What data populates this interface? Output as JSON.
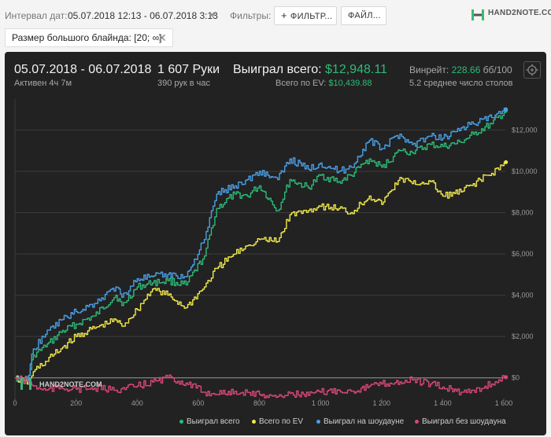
{
  "toolbar": {
    "date_label": "Интервал дат:",
    "date_value": "05.07.2018 12:13 - 06.07.2018 3:13",
    "filters_label": "Фильтры:",
    "filter_button": "ФИЛЬТР...",
    "file_button": "ФАЙЛ...",
    "logo": "HAND2NOTE.COM"
  },
  "active_filter": {
    "label": "Размер большого блайнда: [20; ∞]",
    "close": "✕"
  },
  "stats": {
    "date_range": "05.07.2018 - 06.07.2018",
    "active": "Активен 4ч 7м",
    "hands": "1 607 Руки",
    "hands_per_hour": "390 рук в час",
    "won_label": "Выиграл всего:",
    "won_value": "$12,948.11",
    "ev_label": "Всего по EV:",
    "ev_value": "$10,439.88",
    "winrate_label": "Винрейт:",
    "winrate_value": "228.66",
    "winrate_unit": "бб/100",
    "tables": "5.2 среднее число столов"
  },
  "watermark": "HAND2NOTE.COM",
  "colors": {
    "won_total": "#2dbb78",
    "ev": "#f0e84a",
    "showdown": "#4a9fe6",
    "non_showdown": "#d9477a",
    "background": "#222222",
    "grid": "#3c3c3c"
  },
  "chart_data": {
    "type": "line",
    "xlim": [
      0,
      1600
    ],
    "ylim": [
      -1000,
      13500
    ],
    "x_ticks": [
      "0",
      "200",
      "400",
      "600",
      "800",
      "1 000",
      "1 200",
      "1 400",
      "1 600"
    ],
    "x_tick_values": [
      0,
      200,
      400,
      600,
      800,
      1000,
      1200,
      1400,
      1600
    ],
    "y_ticks": [
      "$0",
      "$2,000",
      "$4,000",
      "$6,000",
      "$8,000",
      "$10,000",
      "$12,000"
    ],
    "y_tick_values": [
      0,
      2000,
      4000,
      6000,
      8000,
      10000,
      12000
    ],
    "legend_position": "bottom",
    "series": [
      {
        "name": "Выиграл всего",
        "color_key": "won_total",
        "x": [
          0,
          40,
          60,
          100,
          150,
          200,
          260,
          330,
          350,
          400,
          450,
          500,
          560,
          620,
          660,
          720,
          760,
          800,
          860,
          900,
          960,
          1000,
          1060,
          1100,
          1160,
          1200,
          1260,
          1300,
          1360,
          1400,
          1460,
          1500,
          1560,
          1607
        ],
        "values": [
          0,
          -200,
          1100,
          1500,
          2200,
          2600,
          3000,
          4000,
          3500,
          4400,
          4600,
          4700,
          4500,
          5900,
          8200,
          8900,
          8800,
          9300,
          8100,
          9600,
          9200,
          9800,
          9500,
          9800,
          10600,
          10200,
          11000,
          10900,
          11300,
          11200,
          11400,
          11800,
          12300,
          12948
        ]
      },
      {
        "name": "Всего по EV",
        "color_key": "ev",
        "x": [
          0,
          40,
          60,
          100,
          150,
          200,
          260,
          330,
          350,
          400,
          450,
          500,
          560,
          620,
          660,
          720,
          760,
          800,
          860,
          900,
          960,
          1000,
          1060,
          1100,
          1160,
          1200,
          1260,
          1300,
          1360,
          1400,
          1460,
          1500,
          1560,
          1607
        ],
        "values": [
          0,
          -300,
          300,
          800,
          1400,
          2000,
          2400,
          2800,
          2500,
          3300,
          4300,
          4000,
          3400,
          4400,
          5300,
          6000,
          6400,
          6700,
          6600,
          7900,
          8100,
          8300,
          8200,
          8000,
          8800,
          8400,
          9700,
          9400,
          9500,
          8800,
          9000,
          9400,
          9900,
          10440
        ]
      },
      {
        "name": "Выиграл на шоудауне",
        "color_key": "showdown",
        "x": [
          0,
          40,
          60,
          100,
          150,
          200,
          260,
          330,
          350,
          400,
          450,
          500,
          560,
          620,
          660,
          720,
          760,
          800,
          860,
          900,
          960,
          1000,
          1060,
          1100,
          1160,
          1200,
          1260,
          1300,
          1360,
          1400,
          1460,
          1500,
          1560,
          1607
        ],
        "values": [
          0,
          -100,
          1400,
          2100,
          2800,
          3200,
          3600,
          4400,
          3900,
          4800,
          4900,
          5000,
          4900,
          6700,
          8900,
          9300,
          9600,
          10000,
          9600,
          10600,
          10100,
          10400,
          10000,
          10200,
          11500,
          11100,
          11800,
          11300,
          11700,
          11600,
          12100,
          12300,
          12600,
          13000
        ]
      },
      {
        "name": "Выиграл без шоудауна",
        "color_key": "non_showdown",
        "x": [
          0,
          40,
          60,
          100,
          150,
          200,
          260,
          330,
          400,
          450,
          500,
          560,
          620,
          660,
          720,
          760,
          800,
          860,
          900,
          960,
          1000,
          1060,
          1100,
          1160,
          1200,
          1260,
          1300,
          1360,
          1400,
          1460,
          1500,
          1560,
          1607
        ],
        "values": [
          0,
          -150,
          -400,
          -600,
          -450,
          -550,
          -500,
          -600,
          -400,
          -200,
          0,
          -250,
          -700,
          -800,
          -650,
          -700,
          -800,
          -900,
          -750,
          -850,
          -700,
          -600,
          -650,
          -400,
          -300,
          -200,
          -100,
          -300,
          -450,
          -700,
          -600,
          -300,
          30
        ]
      }
    ]
  }
}
